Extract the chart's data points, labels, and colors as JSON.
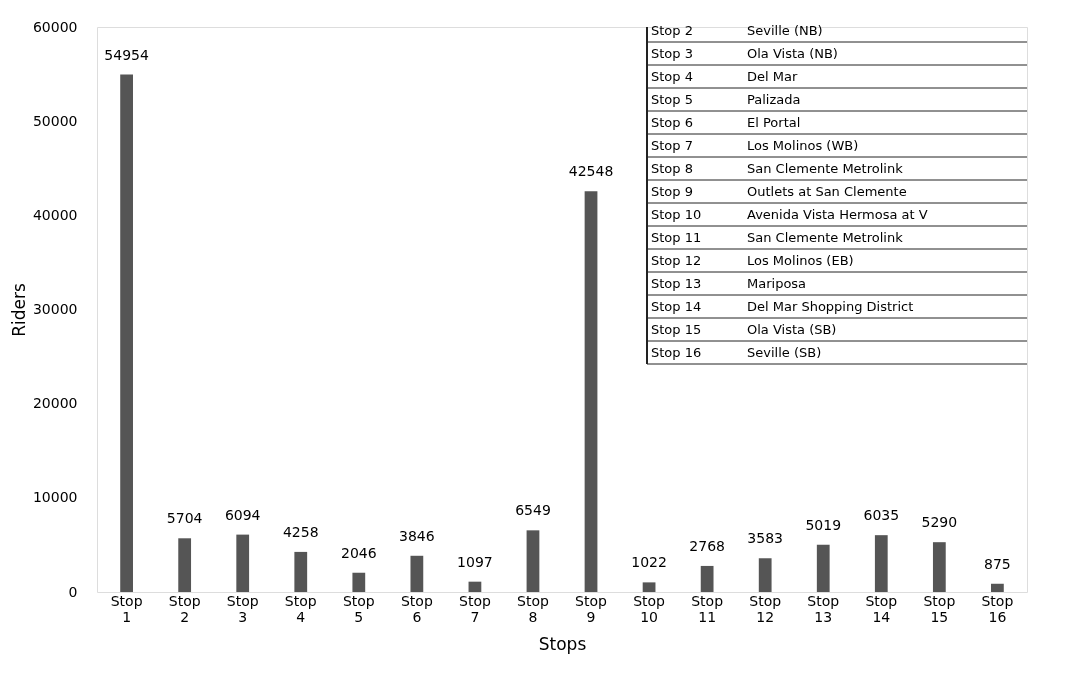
{
  "chart_data": {
    "type": "bar",
    "xlabel": "Stops",
    "ylabel": "Riders",
    "categories": [
      "Stop 1",
      "Stop 2",
      "Stop 3",
      "Stop 4",
      "Stop 5",
      "Stop 6",
      "Stop 7",
      "Stop 8",
      "Stop 9",
      "Stop 10",
      "Stop 11",
      "Stop 12",
      "Stop 13",
      "Stop 14",
      "Stop 15",
      "Stop 16"
    ],
    "values": [
      54954,
      5704,
      6094,
      4258,
      2046,
      3846,
      1097,
      6549,
      42548,
      1022,
      2768,
      3583,
      5019,
      6035,
      5290,
      875
    ],
    "color": "#555555",
    "data_labels": true,
    "ylim": [
      0,
      60000
    ],
    "yticks": [
      0,
      10000,
      20000,
      30000,
      40000,
      50000,
      60000
    ],
    "grid": false,
    "annotations": [
      "Stop 2",
      "Seville (NB)",
      "Stop 3",
      "Ola Vista (NB)",
      "Stop 4",
      "Del Mar",
      "Stop 5",
      "Palizada",
      "Stop 6",
      "El Portal",
      "Stop 7",
      "Los Molinos (WB)",
      "Stop 8",
      "San Clemente Metrolink",
      "Stop 9",
      "Outlets at San Clemente",
      "Stop 10",
      "Avenida Vista Hermosa at V",
      "Stop 11",
      "San Clemente Metrolink",
      "Stop 12",
      "Los Molinos (EB)",
      "Stop 13",
      "Mariposa",
      "Stop 14",
      "Del Mar Shopping District",
      "Stop 15",
      "Ola Vista (SB)",
      "Stop 16",
      "Seville (SB)"
    ]
  }
}
